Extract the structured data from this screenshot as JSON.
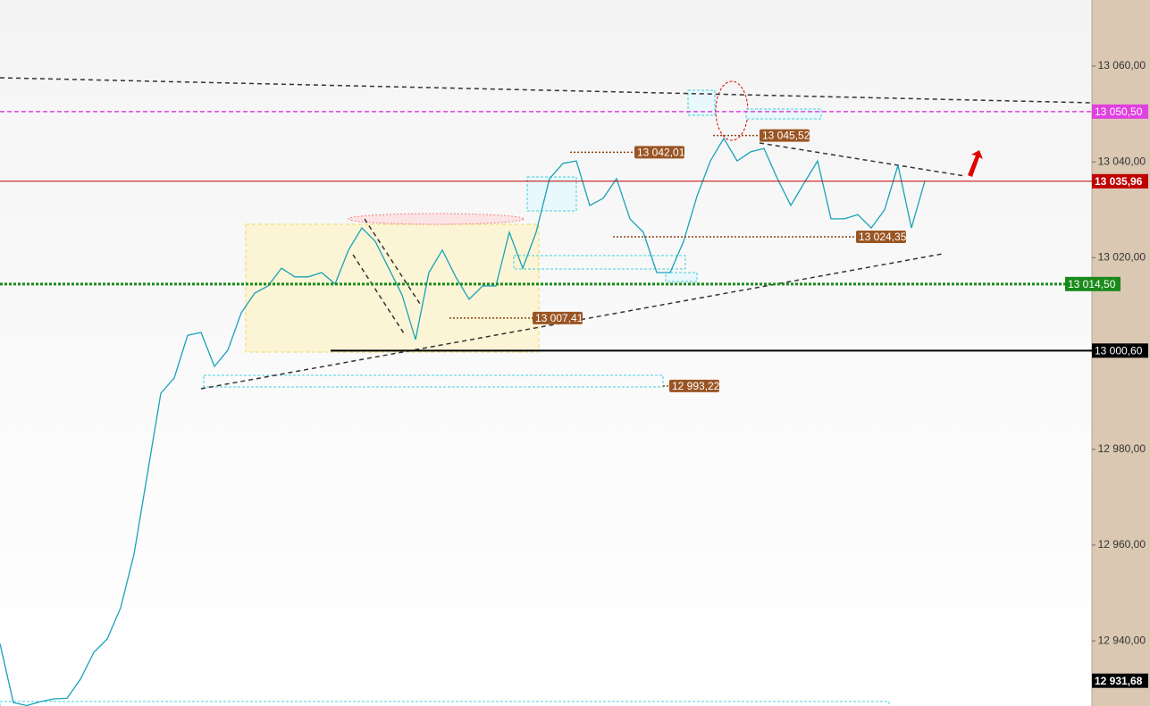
{
  "chart_data": {
    "type": "line",
    "series": [
      {
        "color": "#17a2b8",
        "values": [
          12939.4,
          12927.1,
          12926.5,
          12927.3,
          12927.9,
          12928.0,
          12932.0,
          12937.6,
          12940.4,
          12946.9,
          12958.1,
          12974.9,
          12991.7,
          12994.9,
          13003.8,
          13004.4,
          12997.3,
          13000.7,
          13008.5,
          13012.6,
          13014.1,
          13017.8,
          13016.0,
          13016.0,
          13016.9,
          13014.5,
          13021.6,
          13026.2,
          13023.4,
          13017.8,
          13012.2,
          13002.9,
          13016.9,
          13021.6,
          13016.0,
          13011.3,
          13014.1,
          13014.1,
          13025.3,
          13017.8,
          13025.3,
          13036.5,
          13039.7,
          13040.2,
          13030.9,
          13032.4,
          13036.5,
          13028.1,
          13025.3,
          13016.9,
          13016.9,
          13023.4,
          13032.8,
          13040.2,
          13044.9,
          13040.2,
          13042.1,
          13042.8,
          13036.5,
          13030.9,
          13035.6,
          13040.2,
          13028.1,
          13028.1,
          13029.0,
          13026.2,
          13030.0,
          13039.3,
          13026.2,
          13036.0
        ]
      }
    ],
    "ylim": [
      12926.4,
      13073.8
    ],
    "yticks": [
      {
        "value": 12940,
        "label": "12 940,00"
      },
      {
        "value": 12960,
        "label": "12 960,00"
      },
      {
        "value": 12980,
        "label": "12 980,00"
      },
      {
        "value": 13020,
        "label": "13 020,00"
      },
      {
        "value": 13040,
        "label": "13 040,00"
      },
      {
        "value": 13060,
        "label": "13 060,00"
      }
    ],
    "price_levels": [
      {
        "value": 13050.5,
        "label": "13 050,50",
        "color": "#e040e0"
      },
      {
        "value": 13035.96,
        "label": "13 035,96",
        "color": "#c00000"
      },
      {
        "value": 13014.5,
        "label": "13 014,50",
        "color": "#1a8a1a"
      },
      {
        "value": 13000.6,
        "label": "13 000,60",
        "color": "#000000"
      },
      {
        "value": 12931.68,
        "label": "12 931,68",
        "color": "#000000"
      }
    ],
    "annotations": [
      {
        "value": 13042.01,
        "label": "13 042,01"
      },
      {
        "value": 13045.52,
        "label": "13 045,52"
      },
      {
        "value": 13024.35,
        "label": "13 024,35"
      },
      {
        "value": 13007.41,
        "label": "13 007,41"
      },
      {
        "value": 12993.22,
        "label": "12 993,22"
      }
    ]
  }
}
